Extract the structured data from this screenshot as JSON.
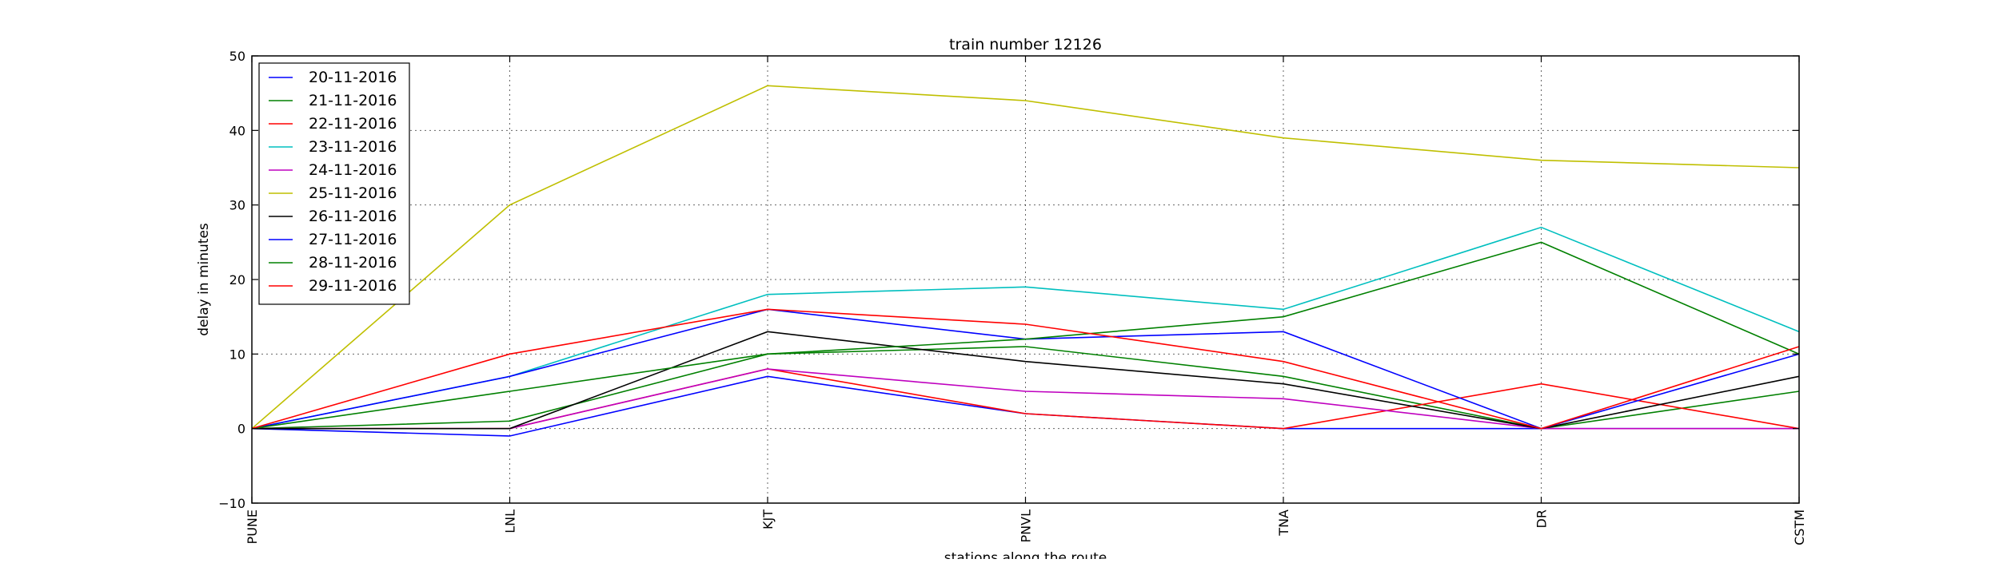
{
  "chart_data": {
    "type": "line",
    "title": "train number 12126",
    "xlabel": "stations along the route",
    "ylabel": "delay in minutes",
    "categories": [
      "PUNE",
      "LNL",
      "KJT",
      "PNVL",
      "TNA",
      "DR",
      "CSTM"
    ],
    "ylim": [
      -10,
      50
    ],
    "yticks": [
      -10,
      0,
      10,
      20,
      30,
      40,
      50
    ],
    "grid": true,
    "legend_position": "top-left",
    "series": [
      {
        "name": "20-11-2016",
        "color": "#0000ff",
        "values": [
          0,
          -1,
          7,
          2,
          0,
          0,
          0
        ]
      },
      {
        "name": "21-11-2016",
        "color": "#008000",
        "values": [
          0,
          1,
          10,
          11,
          7,
          0,
          5
        ]
      },
      {
        "name": "22-11-2016",
        "color": "#ff0000",
        "values": [
          0,
          0,
          8,
          2,
          0,
          6,
          0
        ]
      },
      {
        "name": "23-11-2016",
        "color": "#00bfbf",
        "values": [
          0,
          7,
          18,
          19,
          16,
          27,
          13
        ]
      },
      {
        "name": "24-11-2016",
        "color": "#bf00bf",
        "values": [
          0,
          0,
          8,
          5,
          4,
          0,
          0
        ]
      },
      {
        "name": "25-11-2016",
        "color": "#bfbf00",
        "values": [
          0,
          30,
          46,
          44,
          39,
          36,
          35
        ]
      },
      {
        "name": "26-11-2016",
        "color": "#000000",
        "values": [
          0,
          0,
          13,
          9,
          6,
          0,
          7
        ]
      },
      {
        "name": "27-11-2016",
        "color": "#0000ff",
        "values": [
          0,
          7,
          16,
          12,
          13,
          0,
          10
        ]
      },
      {
        "name": "28-11-2016",
        "color": "#008000",
        "values": [
          0,
          5,
          10,
          12,
          15,
          25,
          10
        ]
      },
      {
        "name": "29-11-2016",
        "color": "#ff0000",
        "values": [
          0,
          10,
          16,
          14,
          9,
          0,
          11
        ]
      }
    ]
  }
}
